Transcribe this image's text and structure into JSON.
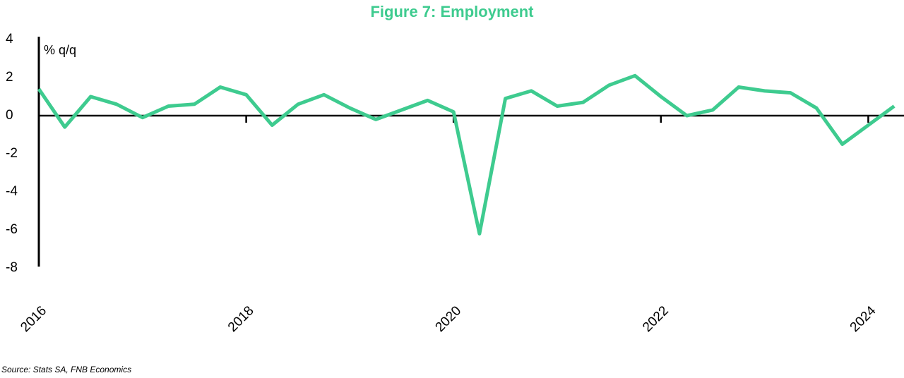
{
  "chart_data": {
    "type": "line",
    "title": "Figure 7: Employment",
    "y_label": "% q/q",
    "source": "Source: Stats SA, FNB Economics",
    "categories": [
      "2016",
      null,
      null,
      null,
      null,
      null,
      null,
      null,
      "2018",
      null,
      null,
      null,
      null,
      null,
      null,
      null,
      "2020",
      null,
      null,
      null,
      null,
      null,
      null,
      null,
      "2022",
      null,
      null,
      null,
      null,
      null,
      null,
      null,
      "2024",
      null
    ],
    "series": [
      {
        "name": "Employment",
        "color": "#3ecb8f",
        "values": [
          1.4,
          -0.6,
          1.0,
          0.6,
          -0.1,
          0.5,
          0.6,
          1.5,
          1.1,
          -0.5,
          0.6,
          1.1,
          0.4,
          -0.2,
          0.3,
          0.8,
          0.2,
          -6.2,
          0.9,
          1.3,
          0.5,
          0.7,
          1.6,
          2.1,
          1.0,
          0.0,
          0.3,
          1.5,
          1.3,
          1.2,
          0.4,
          -1.5,
          -0.5,
          0.5
        ]
      }
    ],
    "ylim": [
      -8,
      4
    ],
    "yticks": [
      -8,
      -6,
      -4,
      -2,
      0,
      2,
      4
    ],
    "grid": false
  }
}
